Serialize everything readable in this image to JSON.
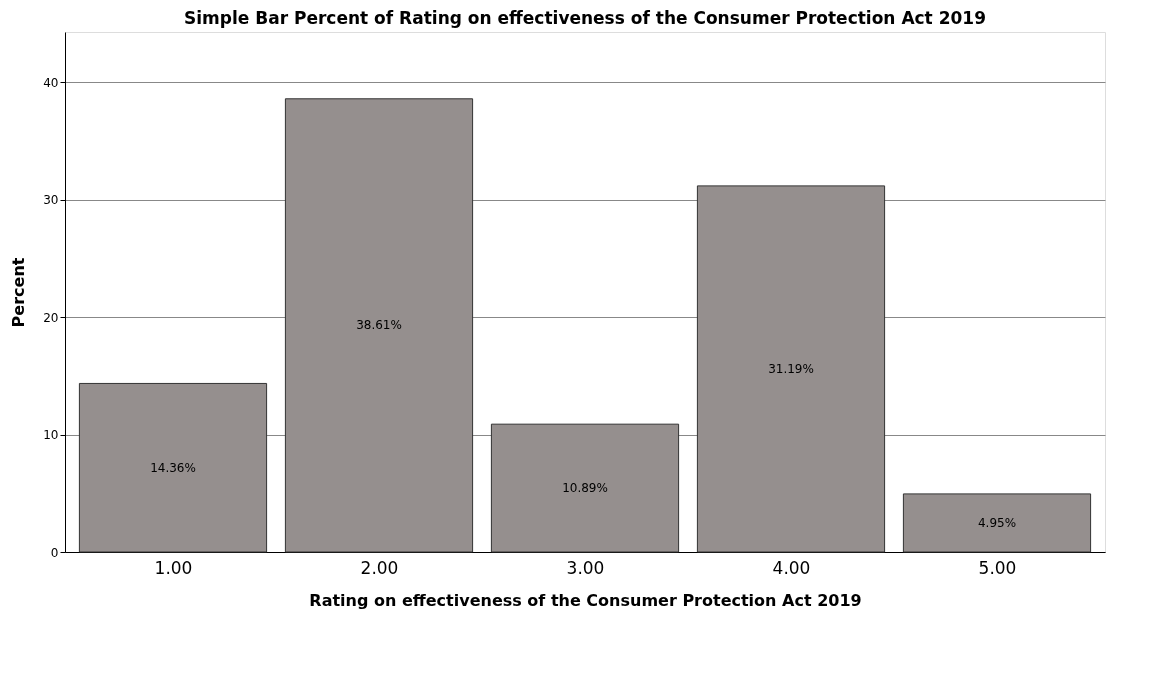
{
  "chart_data": {
    "type": "bar",
    "title": "Simple Bar Percent of Rating on effectiveness of the Consumer Protection Act 2019",
    "xlabel": "Rating on effectiveness of the Consumer Protection Act 2019",
    "ylabel": "Percent",
    "categories": [
      "1.00",
      "2.00",
      "3.00",
      "4.00",
      "5.00"
    ],
    "values": [
      14.36,
      38.61,
      10.89,
      31.19,
      4.95
    ],
    "value_labels": [
      "14.36%",
      "38.61%",
      "10.89%",
      "31.19%",
      "4.95%"
    ],
    "color": "#958f8e",
    "ylim": [
      0,
      44.3
    ],
    "yticks": [
      0,
      10,
      20,
      30,
      40
    ],
    "grid": "y"
  }
}
